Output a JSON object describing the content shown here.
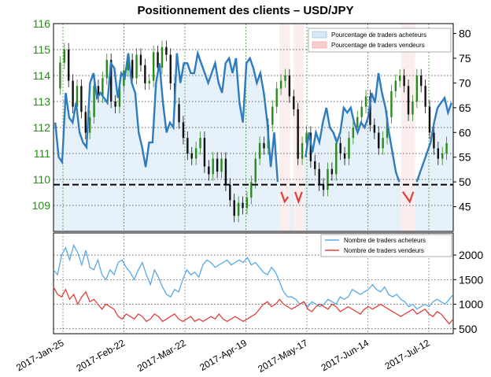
{
  "title": "Positionnement des clients – USD/JPY",
  "colors": {
    "buyers": "#2e7bbf",
    "sellers": "#e0403a",
    "buyers_light": "#5aa9e6",
    "candle_up": "#2a8a1c",
    "candle_down": "#111111",
    "buy_fill": "#d7e8f6",
    "sell_fill": "#f8dede",
    "price_axis": "#2a8a1c"
  },
  "chart_data": [
    {
      "type": "line",
      "panel": "top",
      "x_ticks": [
        "2017-Jan-25",
        "2017-Feb-22",
        "2017-Mar-22",
        "2017-Apr-19",
        "2017-May-17",
        "2017-Jun-14",
        "2017-Jul-12"
      ],
      "price_axis": {
        "ticks": [
          109,
          110,
          111,
          112,
          113,
          114,
          115,
          116
        ],
        "range": [
          108,
          116
        ]
      },
      "percent_axis": {
        "ticks": [
          45,
          50,
          55,
          60,
          65,
          70,
          75,
          80
        ],
        "range": [
          40,
          82
        ]
      },
      "reference_level": 109.8,
      "legend": [
        "Pourcentage de traders acheteurs",
        "Pourcentage de traders vendeurs"
      ],
      "percent_long": [
        62,
        55,
        54,
        68,
        63,
        62,
        66,
        60,
        58,
        57,
        70,
        72,
        67,
        68,
        67,
        66,
        74,
        73,
        67,
        72,
        71,
        76,
        70,
        68,
        60,
        57,
        53,
        58,
        58,
        70,
        74,
        66,
        60,
        62,
        61,
        76,
        70,
        74,
        74,
        72,
        72,
        76,
        74,
        72,
        70,
        72,
        74,
        70,
        68,
        74,
        75,
        72,
        75,
        66,
        62,
        74,
        75,
        73,
        70,
        72,
        68,
        62,
        53,
        60,
        50,
        48,
        46,
        47,
        50,
        48,
        46,
        48,
        55,
        60,
        56,
        60,
        58,
        62,
        65,
        61,
        60,
        58,
        60,
        65,
        64,
        65,
        62,
        60,
        62,
        61,
        63,
        68,
        66,
        72,
        68,
        65,
        60,
        56,
        52,
        50,
        48,
        47,
        46,
        48,
        50,
        52,
        54,
        56,
        58,
        62,
        65,
        66,
        67,
        64,
        66
      ],
      "price_close": [
        113.5,
        114.5,
        115.0,
        113.8,
        112.8,
        113.6,
        112.6,
        111.8,
        112.4,
        113.6,
        113.2,
        113.9,
        114.6,
        113.0,
        112.8,
        113.6,
        114.2,
        114.6,
        113.9,
        114.8,
        114.4,
        113.7,
        113.8,
        114.9,
        114.3,
        115.1,
        114.8,
        113.7,
        112.9,
        112.2,
        111.6,
        111.0,
        110.8,
        111.2,
        111.6,
        110.5,
        110.2,
        110.8,
        110.3,
        110.8,
        109.8,
        109.2,
        108.6,
        109.1,
        108.9,
        109.3,
        109.9,
        110.8,
        111.4,
        111.2,
        112.1,
        112.8,
        113.5,
        113.8,
        114.0,
        113.2,
        112.7,
        110.8,
        111.4,
        111.8,
        110.7,
        110.4,
        109.8,
        109.6,
        110.4,
        110.2,
        111.4,
        111.0,
        110.8,
        111.6,
        112.0,
        112.4,
        112.8,
        113.2,
        112.1,
        111.8,
        111.2,
        111.6,
        112.4,
        113.4,
        113.8,
        114.0,
        113.6,
        112.5,
        113.0,
        114.0,
        113.6,
        112.8,
        111.8,
        111.2,
        110.8,
        111.0,
        111.4
      ],
      "long_range": [
        54,
        77
      ],
      "short_range": [
        45,
        56
      ]
    },
    {
      "type": "line",
      "panel": "bottom",
      "y_ticks": [
        500,
        1000,
        1500,
        2000
      ],
      "y_range": [
        400,
        2450
      ],
      "legend": [
        "Nombre de traders acheteurs",
        "Nombre de traders vendeurs"
      ],
      "long_count": [
        1700,
        1600,
        2000,
        2150,
        1900,
        2200,
        2050,
        1800,
        2100,
        1750,
        1700,
        1900,
        1600,
        1500,
        1700,
        1600,
        1850,
        1900,
        1750,
        1650,
        1500,
        1700,
        1850,
        1600,
        1400,
        1700,
        1550,
        1350,
        1200,
        1150,
        1300,
        1250,
        1500,
        1700,
        1600,
        1650,
        1550,
        1800,
        1900,
        1850,
        1750,
        1800,
        1850,
        1900,
        1800,
        1850,
        1900,
        1850,
        1950,
        1800,
        1850,
        1750,
        1650,
        1600,
        1750,
        1650,
        1450,
        1250,
        1150,
        1150,
        1100,
        1000,
        1050,
        950,
        1050,
        1000,
        950,
        1000,
        1100,
        1050,
        1000,
        1150,
        1100,
        1150,
        1300,
        1250,
        1200,
        1250,
        1300,
        1400,
        1300,
        1250,
        1350,
        1200,
        1150,
        1200,
        1100,
        1050,
        950,
        1000,
        900,
        950,
        1000,
        950,
        1050,
        1100,
        1050,
        1000,
        1100,
        1200
      ],
      "short_count": [
        1350,
        1200,
        1150,
        1300,
        1100,
        1200,
        1000,
        1150,
        1250,
        1050,
        1100,
        1000,
        900,
        1000,
        950,
        900,
        750,
        700,
        800,
        750,
        700,
        800,
        750,
        650,
        700,
        800,
        750,
        650,
        700,
        750,
        800,
        700,
        650,
        700,
        750,
        650,
        700,
        650,
        700,
        750,
        700,
        800,
        700,
        650,
        700,
        750,
        700,
        650,
        700,
        750,
        800,
        900,
        1000,
        1050,
        950,
        1000,
        1100,
        1000,
        950,
        900,
        950,
        1000,
        1050,
        900,
        850,
        950,
        1000,
        950,
        900,
        1000,
        950,
        850,
        900,
        950,
        900,
        850,
        800,
        900,
        950,
        900,
        950,
        1000,
        950,
        900,
        850,
        800,
        750,
        800,
        850,
        900,
        800,
        850,
        900,
        800,
        750,
        850,
        800,
        700,
        600,
        700
      ]
    }
  ]
}
